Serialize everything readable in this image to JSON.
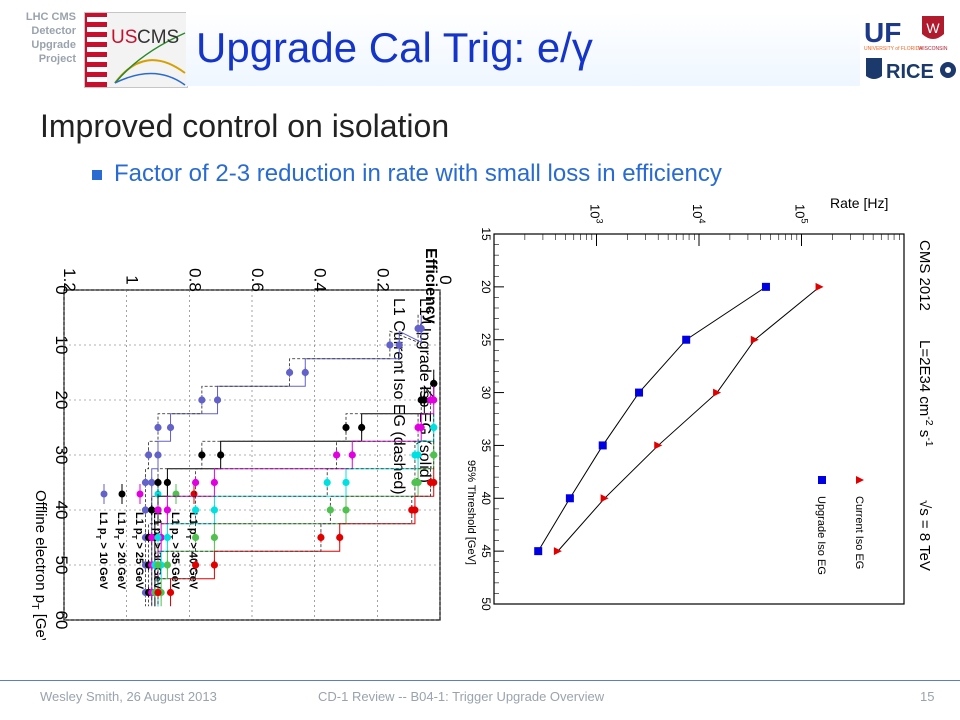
{
  "header": {
    "project_tag": [
      "LHC CMS",
      "Detector",
      "Upgrade",
      "Project"
    ],
    "logo_text": [
      "US",
      "CMS"
    ],
    "title": "Upgrade Cal Trig: e/γ",
    "logos": [
      "UF",
      "UNIVERSITY of FLORIDA",
      "WISCONSIN",
      "RICE"
    ]
  },
  "content": {
    "bullet1": "Improved control on isolation",
    "bullet2": "Factor of 2-3 reduction in rate with small loss in efficiency"
  },
  "footer": {
    "left": "Wesley Smith, 26 August 2013",
    "center": "CD-1 Review -- B04-1: Trigger Upgrade Overview",
    "page": "15"
  },
  "chart_data": [
    {
      "type": "line",
      "title": "Efficiency",
      "xlabel": "Offline electron p_T [GeV]",
      "xlim": [
        0,
        60
      ],
      "ylim": [
        0,
        1.2
      ],
      "x_ticks": [
        "0",
        "10",
        "20",
        "30",
        "40",
        "50",
        "60"
      ],
      "y_ticks": [
        "0",
        "0.2",
        "0.4",
        "0.6",
        "0.8",
        "1",
        "1.2"
      ],
      "legend_header": [
        "L1 Upgrade Iso EG (solid)",
        "L1 Current Iso EG (dashed)"
      ],
      "legend": [
        {
          "label": "L1 p_T > 10 GeV",
          "color": "#6262c8"
        },
        {
          "label": "L1 p_T > 20 GeV",
          "color": "#000000"
        },
        {
          "label": "L1 p_T > 25 GeV",
          "color": "#e000e0"
        },
        {
          "label": "L1 p_T > 30 GeV",
          "color": "#00e0e0"
        },
        {
          "label": "L1 p_T > 35 GeV",
          "color": "#50c050"
        },
        {
          "label": "L1 p_T > 40 GeV",
          "color": "#e00000"
        }
      ],
      "series": [
        {
          "name": "L1 p_T > 10 GeV",
          "x": [
            7,
            10,
            15,
            20,
            25,
            30,
            35,
            40,
            45,
            50,
            55
          ],
          "upgrade": [
            0.06,
            0.13,
            0.43,
            0.71,
            0.86,
            0.9,
            0.92,
            0.92,
            0.92,
            0.92,
            0.92
          ],
          "current": [
            0.07,
            0.16,
            0.48,
            0.76,
            0.9,
            0.93,
            0.94,
            0.94,
            0.94,
            0.94,
            0.94
          ]
        },
        {
          "name": "L1 p_T > 20 GeV",
          "x": [
            17,
            20,
            25,
            30,
            35,
            40,
            45,
            50,
            55
          ],
          "upgrade": [
            0.02,
            0.05,
            0.25,
            0.7,
            0.87,
            0.9,
            0.91,
            0.91,
            0.91
          ],
          "current": [
            0.02,
            0.06,
            0.3,
            0.76,
            0.9,
            0.92,
            0.93,
            0.93,
            0.93
          ]
        },
        {
          "name": "L1 p_T > 25 GeV",
          "x": [
            20,
            25,
            30,
            35,
            40,
            45,
            50,
            55
          ],
          "upgrade": [
            0.02,
            0.06,
            0.28,
            0.72,
            0.87,
            0.89,
            0.9,
            0.9
          ],
          "current": [
            0.03,
            0.07,
            0.33,
            0.78,
            0.9,
            0.92,
            0.92,
            0.92
          ]
        },
        {
          "name": "L1 p_T > 30 GeV",
          "x": [
            25,
            30,
            35,
            40,
            45,
            50,
            55
          ],
          "upgrade": [
            0.02,
            0.07,
            0.3,
            0.72,
            0.87,
            0.89,
            0.9
          ],
          "current": [
            0.02,
            0.08,
            0.36,
            0.78,
            0.9,
            0.91,
            0.91
          ]
        },
        {
          "name": "L1 p_T > 35 GeV",
          "x": [
            30,
            35,
            40,
            45,
            50,
            55
          ],
          "upgrade": [
            0.02,
            0.07,
            0.3,
            0.72,
            0.87,
            0.89
          ],
          "current": [
            0.02,
            0.08,
            0.35,
            0.78,
            0.9,
            0.91
          ]
        },
        {
          "name": "L1 p_T > 40 GeV",
          "x": [
            35,
            40,
            45,
            50,
            55
          ],
          "upgrade": [
            0.02,
            0.08,
            0.32,
            0.72,
            0.86
          ],
          "current": [
            0.03,
            0.09,
            0.38,
            0.78,
            0.9
          ]
        }
      ]
    },
    {
      "type": "line",
      "xlabel": "95% Threshold [GeV]",
      "ylabel": "Rate [Hz]",
      "log_y": true,
      "xlim": [
        15,
        50
      ],
      "ylim": [
        100,
        1000000
      ],
      "x_ticks": [
        "15",
        "20",
        "25",
        "30",
        "35",
        "40",
        "45",
        "50"
      ],
      "y_ticks": [
        "10^3",
        "10^4",
        "10^5"
      ],
      "annotations": [
        "CMS 2012",
        "L=2E34 cm^-2 s^-1",
        "√s = 8 TeV"
      ],
      "series": [
        {
          "name": "Current Iso EG",
          "color": "#e00000",
          "x": [
            20,
            25,
            30,
            35,
            40,
            45
          ],
          "y": [
            150000,
            35000,
            15000,
            4000,
            1200,
            420
          ]
        },
        {
          "name": "Upgrade Iso EG",
          "color": "#0000e0",
          "x": [
            20,
            25,
            30,
            35,
            40,
            45
          ],
          "y": [
            45000,
            7500,
            2600,
            1150,
            550,
            270
          ]
        }
      ]
    }
  ]
}
